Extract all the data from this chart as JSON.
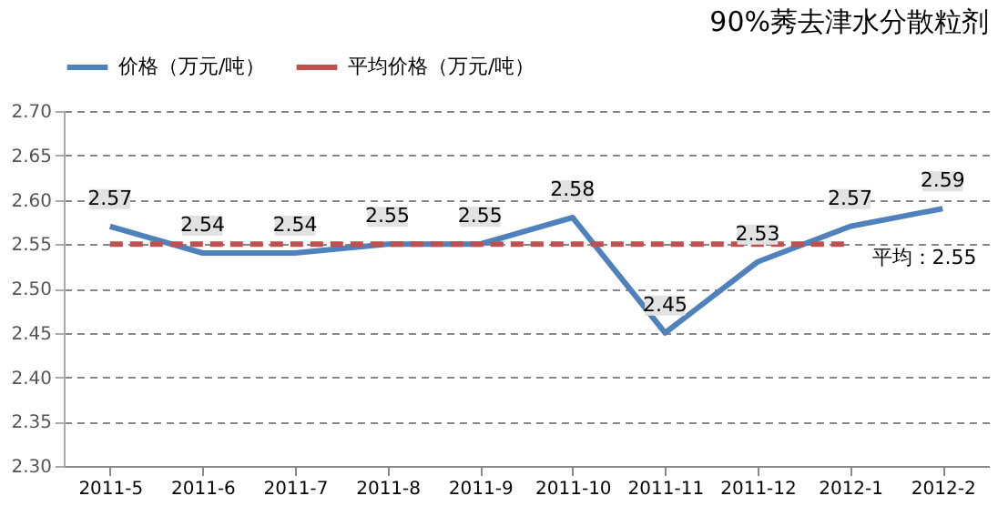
{
  "chart_data": {
    "type": "line",
    "title": "90%莠去津水分散粒剂",
    "categories": [
      "2011-5",
      "2011-6",
      "2011-7",
      "2011-8",
      "2011-9",
      "2011-10",
      "2011-11",
      "2011-12",
      "2012-1",
      "2012-2"
    ],
    "series": [
      {
        "name": "价格（万元/吨）",
        "color": "#4f81bd",
        "line_style": "solid",
        "data_labels": true,
        "values": [
          2.57,
          2.54,
          2.54,
          2.55,
          2.55,
          2.58,
          2.45,
          2.53,
          2.57,
          2.59
        ]
      },
      {
        "name": "平均价格（万元/吨）",
        "color": "#c0504d",
        "line_style": "dashed",
        "values": [
          2.55,
          2.55,
          2.55,
          2.55,
          2.55,
          2.55,
          2.55,
          2.55,
          2.55,
          null
        ]
      }
    ],
    "annotations": [
      {
        "text": "平均：2.55",
        "x": "2012-1",
        "y": 2.55
      }
    ],
    "ylim": [
      2.3,
      2.7
    ],
    "yticks": [
      {
        "value": 2.3,
        "label": "2.30"
      },
      2.35,
      {
        "value": 2.4,
        "label": "2.40"
      },
      2.45,
      {
        "value": 2.5,
        "label": "2.50"
      },
      2.55,
      {
        "value": 2.6,
        "label": "2.60"
      },
      2.65,
      {
        "value": 2.7,
        "label": "2.70"
      }
    ],
    "grid": "y",
    "legend": "top left",
    "marker": "none"
  }
}
